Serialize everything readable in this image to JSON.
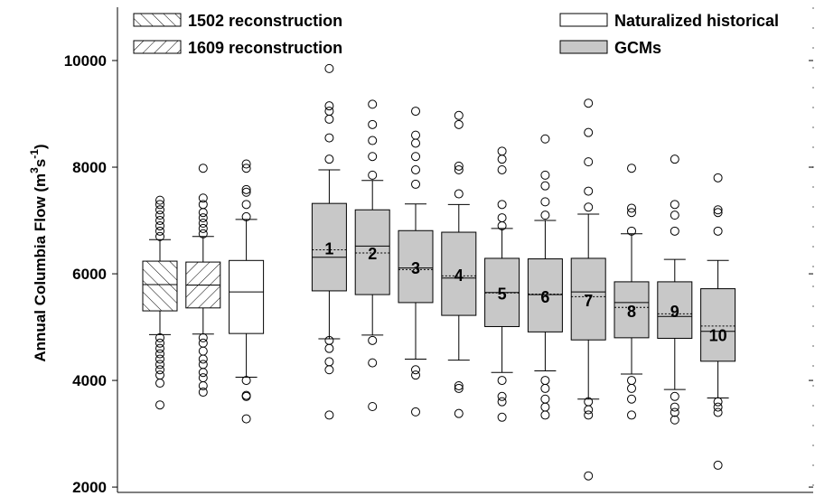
{
  "chart_data": {
    "type": "box",
    "ylabel": {
      "text": "Annual Columbia Flow (m",
      "sup1": "3",
      "mid": "s",
      "sup2": "-1",
      "end": ")"
    },
    "ylim": [
      1900,
      11000
    ],
    "yticks": [
      2000,
      4000,
      6000,
      8000,
      10000
    ],
    "series": [
      {
        "name": "1502 reconstruction",
        "pattern": "back",
        "color": "#ffffff"
      },
      {
        "name": "1609 reconstruction",
        "pattern": "forward",
        "color": "#ffffff"
      },
      {
        "name": "Naturalized historical",
        "pattern": "none",
        "color": "#ffffff"
      },
      {
        "name": "GCMs",
        "pattern": "none",
        "color": "#c8c8c8"
      }
    ],
    "boxes": [
      {
        "series": 0,
        "q1": 5305,
        "median": 5797,
        "q3": 6237,
        "whisker_low": 4860,
        "whisker_high": 6640,
        "outliers": [
          3540,
          3950,
          4100,
          4200,
          4300,
          4400,
          4500,
          4600,
          4700,
          4800,
          6700,
          6800,
          6900,
          7000,
          7100,
          7200,
          7300,
          7380
        ]
      },
      {
        "series": 1,
        "q1": 5360,
        "median": 5790,
        "q3": 6220,
        "whisker_low": 4870,
        "whisker_high": 6700,
        "outliers": [
          3780,
          3900,
          4050,
          4150,
          4300,
          4400,
          4550,
          4700,
          4800,
          6750,
          6850,
          6950,
          7050,
          7150,
          7300,
          7420,
          7980
        ]
      },
      {
        "series": 2,
        "q1": 4880,
        "median": 5660,
        "q3": 6250,
        "whisker_low": 4060,
        "whisker_high": 7020,
        "outliers": [
          3280,
          3700,
          3720,
          4000,
          7070,
          7300,
          7530,
          7580,
          7980,
          8060
        ]
      },
      {
        "series": 3,
        "label": "1",
        "q1": 5680,
        "median": 6310,
        "q3": 7320,
        "mean": 6450,
        "whisker_low": 4780,
        "whisker_high": 7950,
        "outliers": [
          3350,
          4200,
          4350,
          4600,
          4750,
          8150,
          8550,
          8900,
          9050,
          9150,
          9850
        ]
      },
      {
        "series": 3,
        "label": "2",
        "q1": 5610,
        "median": 6520,
        "q3": 7200,
        "mean": 6390,
        "whisker_low": 4850,
        "whisker_high": 7750,
        "outliers": [
          3510,
          4330,
          4750,
          7850,
          8200,
          8500,
          8800,
          9180
        ]
      },
      {
        "series": 3,
        "label": "3",
        "q1": 5460,
        "median": 6110,
        "q3": 6810,
        "mean": 6080,
        "whisker_low": 4400,
        "whisker_high": 7310,
        "outliers": [
          3410,
          4100,
          4200,
          7680,
          7950,
          8200,
          8450,
          8600,
          9050
        ]
      },
      {
        "series": 3,
        "label": "4",
        "q1": 5220,
        "median": 5920,
        "q3": 6780,
        "mean": 5960,
        "whisker_low": 4380,
        "whisker_high": 7300,
        "outliers": [
          3380,
          3850,
          3900,
          7500,
          7950,
          8020,
          8800,
          8970
        ]
      },
      {
        "series": 3,
        "label": "5",
        "q1": 5010,
        "median": 5650,
        "q3": 6290,
        "mean": 5640,
        "whisker_low": 4150,
        "whisker_high": 6850,
        "outliers": [
          3310,
          3600,
          3700,
          4000,
          6900,
          7050,
          7300,
          7950,
          8150,
          8300
        ]
      },
      {
        "series": 3,
        "label": "6",
        "q1": 4910,
        "median": 5610,
        "q3": 6280,
        "mean": 5620,
        "whisker_low": 4180,
        "whisker_high": 7000,
        "outliers": [
          3350,
          3500,
          3650,
          3850,
          4000,
          7100,
          7350,
          7650,
          7850,
          8530
        ]
      },
      {
        "series": 3,
        "label": "7",
        "q1": 4760,
        "median": 5660,
        "q3": 6290,
        "mean": 5570,
        "whisker_low": 3650,
        "whisker_high": 7120,
        "outliers": [
          2210,
          3350,
          3450,
          3600,
          7250,
          7550,
          8100,
          8650,
          9200
        ]
      },
      {
        "series": 3,
        "label": "8",
        "q1": 4800,
        "median": 5460,
        "q3": 5850,
        "mean": 5370,
        "whisker_low": 4120,
        "whisker_high": 6750,
        "outliers": [
          3350,
          3650,
          3850,
          4000,
          6800,
          7150,
          7230,
          7980
        ]
      },
      {
        "series": 3,
        "label": "9",
        "q1": 4790,
        "median": 5200,
        "q3": 5850,
        "mean": 5250,
        "whisker_low": 3830,
        "whisker_high": 6270,
        "outliers": [
          3260,
          3400,
          3500,
          3700,
          6800,
          7100,
          7300,
          8150
        ]
      },
      {
        "series": 3,
        "label": "10",
        "q1": 4360,
        "median": 4920,
        "q3": 5720,
        "mean": 5020,
        "whisker_low": 3670,
        "whisker_high": 6250,
        "outliers": [
          2410,
          3400,
          3500,
          3600,
          6800,
          7150,
          7200,
          7800
        ]
      }
    ]
  }
}
